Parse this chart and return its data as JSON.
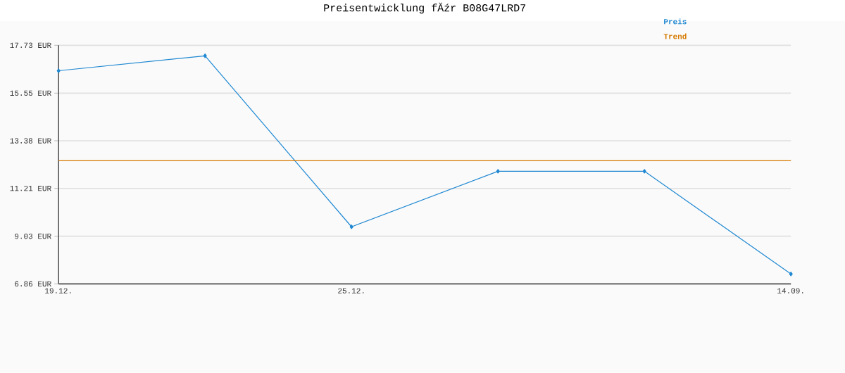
{
  "chart_data": {
    "type": "line",
    "title": "Preisentwicklung fĂźr B08G47LRD7",
    "categories": [
      "19.12.",
      null,
      "25.12.",
      null,
      null,
      "14.09."
    ],
    "series": [
      {
        "name": "Preis",
        "color": "#1f88d2",
        "marker": "diamond",
        "values": [
          16.57,
          17.25,
          9.46,
          11.99,
          11.99,
          7.31
        ]
      },
      {
        "name": "Trend",
        "color": "#d67a00",
        "marker": "none",
        "values": [
          12.47,
          12.47,
          12.47,
          12.47,
          12.47,
          12.47
        ]
      }
    ],
    "ylim": [
      6.86,
      17.73
    ],
    "yticks": [
      {
        "value": 6.86,
        "label": "6.86 EUR"
      },
      {
        "value": 9.03,
        "label": "9.03 EUR"
      },
      {
        "value": 11.21,
        "label": "11.21 EUR"
      },
      {
        "value": 13.38,
        "label": "13.38 EUR"
      },
      {
        "value": 15.55,
        "label": "15.55 EUR"
      },
      {
        "value": 17.73,
        "label": "17.73 EUR"
      }
    ],
    "grid": "y",
    "legend": "top right",
    "line_style": "solid"
  }
}
